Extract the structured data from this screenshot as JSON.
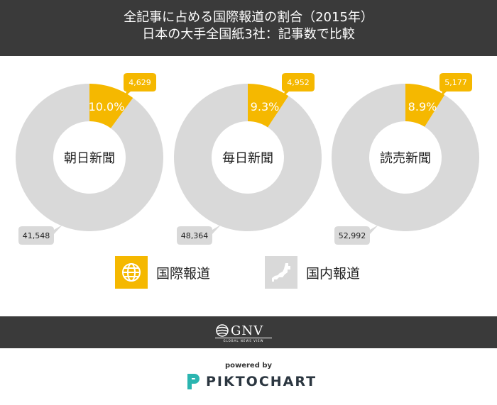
{
  "header": {
    "title_line1": "全記事に占める国際報道の割合（2015年）",
    "title_line2": "日本の大手全国紙3社：記事数で比較"
  },
  "colors": {
    "international": "#f5b800",
    "domestic": "#d9d9d9",
    "header_bg": "#3a3a3a",
    "callout_domestic": "#d9d9d9"
  },
  "chart_data": [
    {
      "type": "pie",
      "title": "朝日新聞",
      "categories": [
        "国際報道",
        "国内報道"
      ],
      "values": [
        4629,
        41548
      ],
      "value_labels": [
        "4,629",
        "41,548"
      ],
      "percent_label": "10.0%"
    },
    {
      "type": "pie",
      "title": "毎日新聞",
      "categories": [
        "国際報道",
        "国内報道"
      ],
      "values": [
        4952,
        48364
      ],
      "value_labels": [
        "4,952",
        "48,364"
      ],
      "percent_label": "9.3%"
    },
    {
      "type": "pie",
      "title": "読売新聞",
      "categories": [
        "国際報道",
        "国内報道"
      ],
      "values": [
        5177,
        52992
      ],
      "value_labels": [
        "5,177",
        "52,992"
      ],
      "percent_label": "8.9%"
    }
  ],
  "legend": [
    {
      "label": "国際報道",
      "icon": "globe-icon"
    },
    {
      "label": "国内報道",
      "icon": "japan-map-icon"
    }
  ],
  "footer": {
    "brand": "GNV",
    "brand_sub": "GLOBAL NEWS VIEW",
    "powered_by": "powered by",
    "piktochart": "PIKTOCHART"
  }
}
